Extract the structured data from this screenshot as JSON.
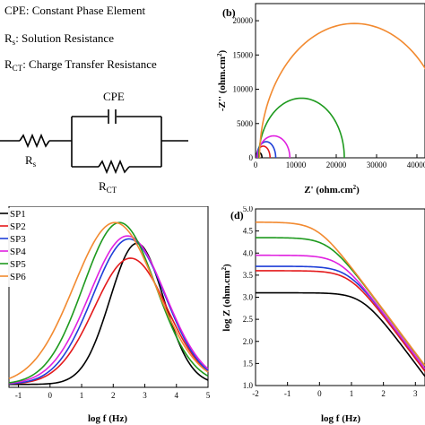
{
  "legend_panel": {
    "cpe_def": "CPE: Constant Phase Element",
    "rs_main": "R",
    "rs_sub": "s",
    "rs_rest": ": Solution Resistance",
    "rct_main": "R",
    "rct_sub": "CT",
    "rct_rest": ": Charge Transfer Resistance",
    "circuit": {
      "cpe_label": "CPE",
      "rs_label_main": "R",
      "rs_label_sub": "s",
      "rct_label_main": "R",
      "rct_label_sub": "CT"
    }
  },
  "colors": {
    "SP1": "#000000",
    "SP2": "#e41a1c",
    "SP3": "#1f3fd8",
    "SP4": "#e021e0",
    "SP5": "#1e9a1e",
    "SP6": "#f28a30"
  },
  "chart_data": [
    {
      "panel": "b",
      "type": "line",
      "panel_label": "(b)",
      "xlabel": "Z' (ohm.cm",
      "xlabel_sup": "2",
      "xlabel_end": ")",
      "ylabel": "-Z'' (ohm.cm",
      "ylabel_sup": "2",
      "ylabel_end": ")",
      "xlim": [
        0,
        42000
      ],
      "ylim": [
        0,
        22500
      ],
      "xticks": [
        "0",
        "10000",
        "20000",
        "30000",
        "40000"
      ],
      "xtick_values": [
        0,
        10000,
        20000,
        30000,
        40000
      ],
      "yticks": [
        "0",
        "5000",
        "10000",
        "15000",
        "20000"
      ],
      "ytick_values": [
        0,
        5000,
        10000,
        15000,
        20000
      ],
      "series": [
        {
          "key": "SP1",
          "x_start": 0,
          "x_end": 1600,
          "peak": 800
        },
        {
          "key": "SP2",
          "x_start": 200,
          "x_end": 3600,
          "peak": 1700
        },
        {
          "key": "SP3",
          "x_start": 300,
          "x_end": 5000,
          "peak": 2350
        },
        {
          "key": "SP4",
          "x_start": 500,
          "x_end": 8500,
          "peak": 3200
        },
        {
          "key": "SP5",
          "x_start": 800,
          "x_end": 22000,
          "peak": 8700
        },
        {
          "key": "SP6",
          "x_start": 1000,
          "x_end": 48000,
          "peak": 19600
        }
      ]
    },
    {
      "panel": "c",
      "type": "line",
      "panel_label": "",
      "xlabel": "log f (Hz)",
      "xlim": [
        -1.3,
        5
      ],
      "xticks": [
        "-1",
        "0",
        "1",
        "2",
        "3",
        "4",
        "5"
      ],
      "xtick_values": [
        -1,
        0,
        1,
        2,
        3,
        4,
        5
      ],
      "legend": [
        "SP1",
        "SP2",
        "SP3",
        "SP4",
        "SP5",
        "SP6"
      ],
      "series": [
        {
          "key": "SP1",
          "center": 2.75,
          "sigma": 0.85,
          "peak": 0.95
        },
        {
          "key": "SP2",
          "center": 2.55,
          "sigma": 1.15,
          "peak": 0.85
        },
        {
          "key": "SP3",
          "center": 2.5,
          "sigma": 1.15,
          "peak": 0.98
        },
        {
          "key": "SP4",
          "center": 2.45,
          "sigma": 1.2,
          "peak": 1.0
        },
        {
          "key": "SP5",
          "center": 2.2,
          "sigma": 1.15,
          "peak": 1.09
        },
        {
          "key": "SP6",
          "center": 2.05,
          "sigma": 1.3,
          "peak": 1.09
        }
      ]
    },
    {
      "panel": "d",
      "type": "line",
      "panel_label": "(d)",
      "xlabel": "log f (Hz)",
      "ylabel": "log Z (ohm.cm",
      "ylabel_sup": "2",
      "ylabel_end": ")",
      "xlim": [
        -2,
        3.3
      ],
      "ylim": [
        1.0,
        5.0
      ],
      "xticks": [
        "-2",
        "-1",
        "0",
        "1",
        "2",
        "3"
      ],
      "xtick_values": [
        -2,
        -1,
        0,
        1,
        2,
        3
      ],
      "yticks": [
        "1.0",
        "1.5",
        "2.0",
        "2.5",
        "3.0",
        "3.5",
        "4.0",
        "4.5",
        "5.0"
      ],
      "ytick_values": [
        1.0,
        1.5,
        2.0,
        2.5,
        3.0,
        3.5,
        4.0,
        4.5,
        5.0
      ],
      "series": [
        {
          "key": "SP1",
          "plateau": 3.1,
          "knee": 1.35
        },
        {
          "key": "SP2",
          "plateau": 3.6,
          "knee": 0.95
        },
        {
          "key": "SP3",
          "plateau": 3.7,
          "knee": 0.9
        },
        {
          "key": "SP4",
          "plateau": 3.95,
          "knee": 0.65
        },
        {
          "key": "SP5",
          "plateau": 4.35,
          "knee": 0.3
        },
        {
          "key": "SP6",
          "plateau": 4.7,
          "knee": -0.05
        }
      ]
    }
  ]
}
